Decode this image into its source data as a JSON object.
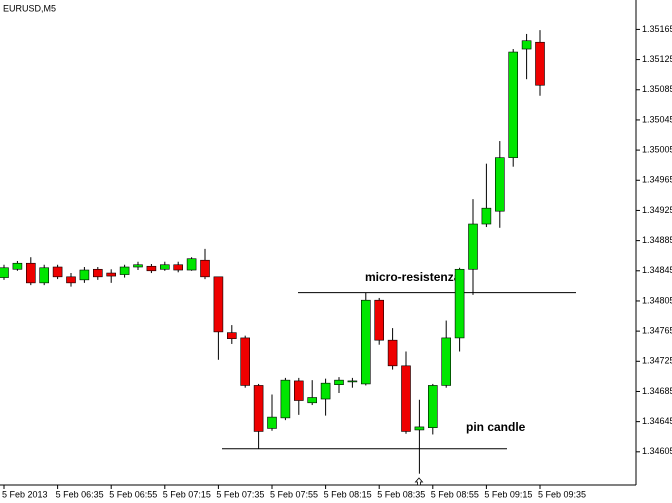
{
  "chart_data": {
    "type": "candlestick",
    "title": "EURUSD,M5",
    "categories": [
      "5 Feb 2013",
      null,
      null,
      null,
      "5 Feb 06:35",
      null,
      null,
      null,
      "5 Feb 06:55",
      null,
      null,
      null,
      "5 Feb 07:15",
      null,
      null,
      null,
      "5 Feb 07:35",
      null,
      null,
      null,
      "5 Feb 07:55",
      null,
      null,
      null,
      "5 Feb 08:15",
      null,
      null,
      null,
      "5 Feb 08:35",
      null,
      null,
      null,
      "5 Feb 08:55",
      null,
      null,
      null,
      "5 Feb 09:15",
      null,
      null,
      null,
      "5 Feb 09:35"
    ],
    "open": [
      1.34836,
      1.34847,
      1.34855,
      1.34829,
      1.3485,
      1.34837,
      1.34833,
      1.34847,
      1.34842,
      1.3484,
      1.3485,
      1.34851,
      1.34847,
      1.34853,
      1.34846,
      1.34859,
      1.34837,
      1.34763,
      1.34756,
      1.34693,
      1.34636,
      1.3465,
      1.34699,
      1.3467,
      1.34675,
      1.34694,
      1.34698,
      1.34695,
      1.34806,
      1.34753,
      1.34719,
      1.34634,
      1.34637,
      1.34693,
      1.34756,
      1.34847,
      1.34907,
      1.34924,
      1.34995,
      1.35139,
      1.35148
    ],
    "high": [
      1.34853,
      1.34858,
      1.34863,
      1.34853,
      1.34853,
      1.34842,
      1.3485,
      1.3485,
      1.34847,
      1.34853,
      1.34857,
      1.34854,
      1.34857,
      1.34857,
      1.34863,
      1.34874,
      1.34837,
      1.34773,
      1.34759,
      1.34695,
      1.34681,
      1.34703,
      1.34703,
      1.347,
      1.34702,
      1.34704,
      1.34703,
      1.34816,
      1.34809,
      1.34769,
      1.34738,
      1.34674,
      1.34695,
      1.34779,
      1.34849,
      1.3494,
      1.34987,
      1.35017,
      1.35139,
      1.35159,
      1.35164
    ],
    "low": [
      1.34833,
      1.34845,
      1.34826,
      1.34826,
      1.34834,
      1.34824,
      1.34829,
      1.34833,
      1.34829,
      1.34836,
      1.34846,
      1.34842,
      1.34845,
      1.34843,
      1.34845,
      1.34834,
      1.34727,
      1.34748,
      1.3469,
      1.34609,
      1.34633,
      1.34647,
      1.34654,
      1.34667,
      1.34653,
      1.34683,
      1.3469,
      1.34693,
      1.34747,
      1.34714,
      1.34629,
      1.34576,
      1.34628,
      1.3469,
      1.34738,
      1.34813,
      1.34903,
      1.34902,
      1.34983,
      1.35099,
      1.35077
    ],
    "close": [
      1.34849,
      1.34855,
      1.34829,
      1.34849,
      1.34837,
      1.34829,
      1.34846,
      1.34837,
      1.34838,
      1.3485,
      1.34853,
      1.34845,
      1.34853,
      1.34846,
      1.34861,
      1.34837,
      1.34764,
      1.34755,
      1.34693,
      1.34632,
      1.34651,
      1.347,
      1.34673,
      1.34677,
      1.34696,
      1.347,
      1.34699,
      1.34806,
      1.34753,
      1.34719,
      1.34632,
      1.34638,
      1.34693,
      1.34756,
      1.34847,
      1.34907,
      1.34928,
      1.34995,
      1.35135,
      1.3515,
      1.35091
    ],
    "up_color": "#00e600",
    "down_color": "#ee0000",
    "ylim": [
      1.34561,
      1.35204
    ],
    "yticks": [
      1.34605,
      1.34645,
      1.34685,
      1.34725,
      1.34765,
      1.34805,
      1.34845,
      1.34885,
      1.34925,
      1.34965,
      1.35005,
      1.35045,
      1.35085,
      1.35125,
      1.35165
    ],
    "levels": [
      {
        "value": 1.34816,
        "label": "micro-resistenza"
      },
      {
        "value": 1.34609
      }
    ],
    "annotations": [
      "pin candle"
    ]
  }
}
